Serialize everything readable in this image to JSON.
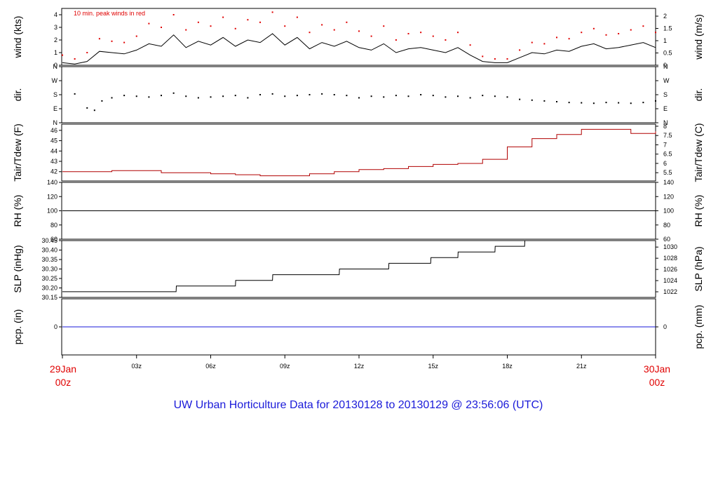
{
  "page": {
    "title": "UW Urban Horticulture Data for 20130128  to  20130129 @ 23:56:06  (UTC)",
    "title_color": "#1a1ad9"
  },
  "time_axis": {
    "hours": [
      0,
      3,
      6,
      9,
      12,
      15,
      18,
      21,
      24
    ],
    "labels": [
      "",
      "03z",
      "06z",
      "09z",
      "12z",
      "15z",
      "18z",
      "21z",
      ""
    ],
    "start": {
      "date": "29Jan",
      "time": "00z"
    },
    "end": {
      "date": "30Jan",
      "time": "00z"
    },
    "date_color": "#e00000"
  },
  "chart_data": [
    {
      "type": "line",
      "panel": "wind",
      "ylabel": "wind (kts)",
      "ylabel_right": "wind (m/s)",
      "ylim": [
        0,
        4.5
      ],
      "yticks": [
        0,
        1,
        2,
        3,
        4
      ],
      "yticks_right": [
        0,
        0.5,
        1,
        1.5,
        2
      ],
      "yticks_right_labels": [
        "0",
        "0.5",
        "1",
        "1.5",
        "2"
      ],
      "annotation": "10 min. peak winds in red",
      "colors": {
        "speed": "#000000",
        "peak": "#e00000"
      },
      "x": [
        0,
        0.5,
        1,
        1.5,
        2,
        2.5,
        3,
        3.5,
        4,
        4.5,
        5,
        5.5,
        6,
        6.5,
        7,
        7.5,
        8,
        8.5,
        9,
        9.5,
        10,
        10.5,
        11,
        11.5,
        12,
        12.5,
        13,
        13.5,
        14,
        14.5,
        15,
        15.5,
        16,
        16.5,
        17,
        17.5,
        18,
        18.5,
        19,
        19.5,
        20,
        20.5,
        21,
        21.5,
        22,
        22.5,
        23,
        23.5,
        24
      ],
      "series": [
        {
          "values": [
            0.2,
            0.1,
            0.3,
            1.1,
            1.0,
            0.9,
            1.2,
            1.7,
            1.5,
            2.4,
            1.4,
            1.9,
            1.6,
            2.2,
            1.5,
            2.0,
            1.8,
            2.5,
            1.6,
            2.2,
            1.3,
            1.8,
            1.5,
            1.9,
            1.4,
            1.2,
            1.7,
            1.0,
            1.3,
            1.4,
            1.2,
            1.0,
            1.4,
            0.8,
            0.3,
            0.2,
            0.2,
            0.6,
            1.0,
            0.9,
            1.2,
            1.1,
            1.5,
            1.7,
            1.3,
            1.4,
            1.6,
            1.8,
            1.4
          ]
        },
        {
          "values": [
            0.8,
            0.5,
            1.0,
            2.1,
            1.9,
            1.8,
            2.3,
            3.3,
            3.0,
            4.0,
            2.8,
            3.4,
            3.1,
            3.8,
            2.9,
            3.6,
            3.4,
            4.2,
            3.1,
            3.8,
            2.6,
            3.2,
            2.8,
            3.4,
            2.7,
            2.3,
            3.1,
            2.0,
            2.5,
            2.6,
            2.3,
            2.0,
            2.6,
            1.6,
            0.7,
            0.5,
            0.5,
            1.2,
            1.8,
            1.7,
            2.2,
            2.1,
            2.6,
            2.9,
            2.4,
            2.5,
            2.8,
            3.1,
            2.6
          ]
        }
      ]
    },
    {
      "type": "scatter",
      "panel": "direction",
      "ylabel": "dir.",
      "ylabel_right": "dir.",
      "ylim": [
        0,
        360
      ],
      "yticks": [
        0,
        90,
        180,
        270,
        360
      ],
      "yticks_labels": [
        "N",
        "E",
        "S",
        "W",
        "N"
      ],
      "x": [
        0.5,
        1.0,
        1.3,
        1.6,
        2.0,
        2.5,
        3.0,
        3.5,
        4.0,
        4.5,
        5.0,
        5.5,
        6.0,
        6.5,
        7.0,
        7.5,
        8.0,
        8.5,
        9.0,
        9.5,
        10.0,
        10.5,
        11.0,
        11.5,
        12.0,
        12.5,
        13.0,
        13.5,
        14.0,
        14.5,
        15.0,
        15.5,
        16.0,
        16.5,
        17.0,
        17.5,
        18.0,
        18.5,
        19.0,
        19.5,
        20.0,
        20.5,
        21.0,
        21.5,
        22.0,
        22.5,
        23.0,
        23.5,
        24.0
      ],
      "series": [
        {
          "values": [
            185,
            95,
            80,
            140,
            160,
            175,
            170,
            165,
            175,
            190,
            170,
            160,
            165,
            170,
            175,
            160,
            180,
            185,
            170,
            175,
            180,
            185,
            180,
            175,
            160,
            170,
            165,
            175,
            170,
            180,
            175,
            165,
            170,
            160,
            175,
            170,
            165,
            150,
            145,
            140,
            135,
            130,
            128,
            125,
            130,
            128,
            125,
            130,
            140
          ]
        }
      ]
    },
    {
      "type": "line",
      "panel": "temperature",
      "ylabel": "Tair/Tdew (F)",
      "ylabel_right": "Tair/Tdew (C)",
      "ylim": [
        41.1,
        46.6
      ],
      "yticks": [
        42,
        43,
        44,
        45,
        46
      ],
      "yticks_right": [
        5.5,
        6,
        6.5,
        7,
        7.5,
        8
      ],
      "yticks_right_labels": [
        "5.5",
        "6",
        "6.5",
        "7",
        "7.5",
        "8"
      ],
      "color": "#b00000",
      "x": [
        0,
        1,
        2,
        3,
        4,
        5,
        6,
        7,
        8,
        9,
        10,
        11,
        12,
        13,
        14,
        15,
        16,
        17,
        18,
        19,
        20,
        21,
        22,
        23,
        24
      ],
      "series": [
        {
          "values": [
            42.0,
            42.0,
            42.1,
            42.1,
            41.9,
            41.9,
            41.8,
            41.7,
            41.6,
            41.6,
            41.8,
            42.0,
            42.2,
            42.3,
            42.5,
            42.7,
            42.8,
            43.2,
            44.4,
            45.2,
            45.6,
            46.1,
            46.1,
            45.7,
            45.9
          ]
        }
      ]
    },
    {
      "type": "line",
      "panel": "humidity",
      "ylabel": "RH (%)",
      "ylabel_right": "RH (%)",
      "ylim": [
        60,
        140
      ],
      "yticks": [
        60,
        80,
        100,
        120,
        140
      ],
      "x": [
        0,
        24
      ],
      "series": [
        {
          "values": [
            100,
            100
          ]
        }
      ]
    },
    {
      "type": "line",
      "panel": "pressure",
      "ylabel": "SLP (inHg)",
      "ylabel_right": "SLP (hPa)",
      "ylim": [
        30.15,
        30.45
      ],
      "yticks": [
        30.15,
        30.2,
        30.25,
        30.3,
        30.35,
        30.4,
        30.45
      ],
      "yticks_labels": [
        "30.15",
        "30.20",
        "30.25",
        "30.30",
        "30.35",
        "30.40",
        "30.45"
      ],
      "yticks_right": [
        1022,
        1024,
        1026,
        1028,
        1030
      ],
      "x": [
        0,
        4.6,
        4.61,
        7.0,
        7.01,
        8.5,
        8.51,
        11.2,
        11.21,
        13.2,
        13.21,
        14.9,
        14.91,
        16.0,
        16.01,
        17.5,
        17.51,
        18.7,
        18.71,
        24
      ],
      "series": [
        {
          "values": [
            30.18,
            30.18,
            30.21,
            30.21,
            30.24,
            30.24,
            30.27,
            30.27,
            30.3,
            30.3,
            30.33,
            30.33,
            30.36,
            30.36,
            30.39,
            30.39,
            30.42,
            30.42,
            30.45,
            30.45
          ]
        }
      ]
    },
    {
      "type": "line",
      "panel": "precipitation",
      "ylabel": "pcp. (in)",
      "ylabel_right": "pcp. (mm)",
      "ylim": [
        -0.5,
        0.5
      ],
      "yticks": [
        0
      ],
      "yticks_right": [
        0
      ],
      "color": "#1a1ad9",
      "x": [
        0,
        24
      ],
      "series": [
        {
          "values": [
            0,
            0
          ]
        }
      ]
    }
  ]
}
